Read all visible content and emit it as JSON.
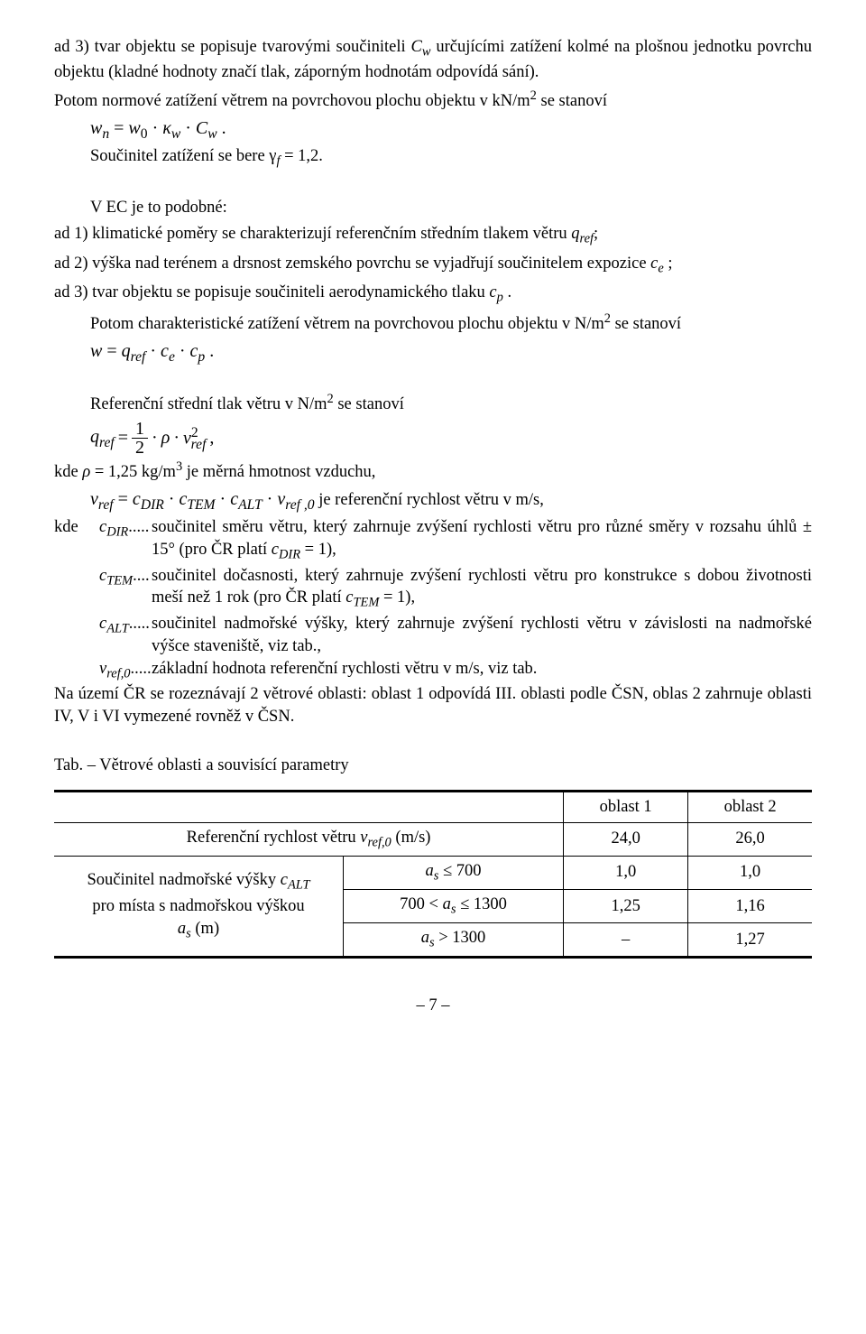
{
  "p1": "ad 3) tvar objektu se popisuje tvarovými součiniteli ",
  "p1_i1": "C",
  "p1_s1": "w",
  "p1b": " určujícími zatížení kolmé na plošnou jednotku povrchu objektu (kladné hodnoty značí tlak, záporným hodnotám odpovídá sání).",
  "p2a": "Potom normové zatížení větrem na povrchovou plochu objektu v kN/m",
  "p2a2": "2",
  "p2b": " se stanoví",
  "eq1_lhs_w": "w",
  "eq1_lhs_n": "n",
  "eq1_eq": " = ",
  "eq1_w0": "w",
  "eq1_0": "0",
  "eq1_dot1": " · ",
  "eq1_kappa": "κ",
  "eq1_kw": "w",
  "eq1_dot2": " · ",
  "eq1_C": "C",
  "eq1_cw": "w",
  "eq1_end": " .",
  "p3a": "Součinitel zatížení se bere γ",
  "p3_f": "f",
  "p3b": " = 1,2.",
  "p4": "V EC je to podobné:",
  "p5a": "ad 1) klimatické poměry se charakterizují referenčním středním tlakem větru ",
  "p5_q": "q",
  "p5_ref": "ref",
  "p5b": ";",
  "p6a": "ad 2) výška nad terénem a drsnost zemského povrchu se vyjadřují součinitelem expozice ",
  "p6_c": "c",
  "p6_e": "e",
  "p6b": " ;",
  "p7a": "ad 3) tvar objektu se popisuje součiniteli aerodynamického tlaku ",
  "p7_c": "c",
  "p7_p": "p",
  "p7b": " .",
  "p8a": "Potom charakteristické zatížení větrem na povrchovou plochu objektu v N/m",
  "p8sup": "2",
  "p8b": " se stanoví",
  "eq2_w": "w",
  "eq2_eq": " = ",
  "eq2_q": "q",
  "eq2_ref": "ref",
  "eq2_d1": " · ",
  "eq2_ce": "c",
  "eq2_e": "e",
  "eq2_d2": " · ",
  "eq2_cp": "c",
  "eq2_p": "p",
  "eq2_end": " .",
  "p9a": "Referenční střední tlak větru v N/m",
  "p9sup": "2",
  "p9b": " se stanoví",
  "eq3_q": "q",
  "eq3_ref": "ref",
  "eq3_eq": " = ",
  "eq3_frac_n": "1",
  "eq3_frac_d": "2",
  "eq3_d1": " · ",
  "eq3_rho": "ρ",
  "eq3_d2": " · ",
  "eq3_v": "v",
  "eq3_vsup": "2",
  "eq3_vsub": "ref",
  "eq3_end": " ,",
  "p10a": "kde  ",
  "p10_rho": "ρ",
  "p10b": " = 1,25 kg/m",
  "p10sup": "3",
  "p10c": "  je měrná hmotnost vzduchu,",
  "eq4_v": "v",
  "eq4_ref": "ref",
  "eq4_eq": " = ",
  "eq4_cD": "c",
  "eq4_DIR": "DIR",
  "eq4_d1": " · ",
  "eq4_cT": "c",
  "eq4_TEM": "TEM",
  "eq4_d2": " · ",
  "eq4_cA": "c",
  "eq4_ALT": "ALT",
  "eq4_d3": " · ",
  "eq4_v2": "v",
  "eq4_ref0": "ref ,0",
  "eq4_txt": "  je referenční rychlost větru v m/s,",
  "p11_lead": "kde  ",
  "p11_c": "c",
  "p11_DIR": "DIR",
  "p11_dots": ".....",
  "p11_txt": " součinitel směru větru, který zahrnuje zvýšení rychlosti větru pro různé směry v rozsahu úhlů ± 15° (pro ČR platí ",
  "p11_c2": "c",
  "p11_DIR2": "DIR",
  "p11_tail": " = 1),",
  "p12_c": "c",
  "p12_TEM": "TEM",
  "p12_dots": "....",
  "p12_txt": " součinitel dočasnosti, který zahrnuje zvýšení rychlosti větru pro konstrukce s dobou životnosti meší než 1 rok (pro ČR platí ",
  "p12_c2": "c",
  "p12_TEM2": "TEM",
  "p12_tail": " = 1),",
  "p13_c": "c",
  "p13_ALT": "ALT",
  "p13_dots": ".....",
  "p13_txt": " součinitel nadmořské výšky, který zahrnuje zvýšení rychlosti větru v závislosti na nadmořské výšce staveniště, viz tab.,",
  "p14_v": "v",
  "p14_ref0": "ref,0",
  "p14_dots": ".....",
  "p14_txt": " základní hodnota referenční rychlosti větru v m/s, viz tab.",
  "p15": "Na území ČR se rozeznávají 2 větrové oblasti: oblast 1 odpovídá III. oblasti podle ČSN, oblas  2 zahrnuje oblasti IV, V i VI vymezené rovněž v ČSN.",
  "tabTitle": "Tab. – Větrové oblasti a souvisící parametry",
  "t": {
    "h_empty": "",
    "h_o1": "oblast 1",
    "h_o2": "oblast 2",
    "r1_a": "Referenční rychlost větru ",
    "r1_v": "v",
    "r1_sub": "ref,0",
    "r1_unit": " (m/s)",
    "r1_v1": "24,0",
    "r1_v2": "26,0",
    "leftA": "Součinitel nadmořské výšky ",
    "left_c": "c",
    "left_ALT": "ALT",
    "leftB": "pro místa s nadmořskou výškou",
    "left_a": "a",
    "left_s": "s",
    "leftC": " (m)",
    "r2_a": "a",
    "r2_s": "s",
    "r2_le": " ≤ 700",
    "r2_v1": "1,0",
    "r2_v2": "1,0",
    "r3_a": "700 < ",
    "r3_ai": "a",
    "r3_s": "s",
    "r3_b": " ≤ 1300",
    "r3_v1": "1,25",
    "r3_v2": "1,16",
    "r4_a": "a",
    "r4_s": "s",
    "r4_gt": " > 1300",
    "r4_v1": "–",
    "r4_v2": "1,27"
  },
  "pgnum": "– 7 –",
  "fs": {
    "body": "18.5px"
  }
}
